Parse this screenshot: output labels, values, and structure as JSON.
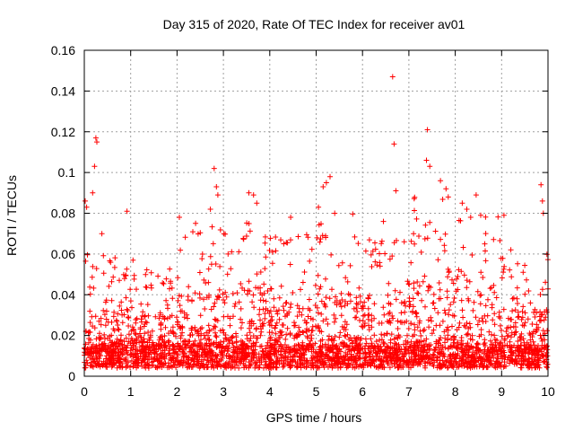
{
  "chart_data": {
    "type": "scatter",
    "title": "Day 315 of 2020, Rate Of TEC Index for receiver av01",
    "xlabel": "GPS time / hours",
    "ylabel": "ROTI / TECUs",
    "xlim": [
      0,
      10
    ],
    "ylim": [
      0,
      0.16
    ],
    "x_ticks": [
      0,
      1,
      2,
      3,
      4,
      5,
      6,
      7,
      8,
      9,
      10
    ],
    "y_ticks": [
      0,
      0.02,
      0.04,
      0.06,
      0.08,
      0.1,
      0.12,
      0.14,
      0.16
    ],
    "x_tick_labels": [
      "0",
      "1",
      "2",
      "3",
      "4",
      "5",
      "6",
      "7",
      "8",
      "9",
      "10"
    ],
    "y_tick_labels": [
      "0",
      "0.02",
      "0.04",
      "0.06",
      "0.08",
      "0.1",
      "0.12",
      "0.14",
      "0.16"
    ],
    "grid": true,
    "marker": "+",
    "color": "#ff0000",
    "sampling": "dense_scatter_estimated",
    "series": [
      {
        "name": "ROTI",
        "notable_points": [
          {
            "x": 0.02,
            "y": 0.086
          },
          {
            "x": 0.05,
            "y": 0.083
          },
          {
            "x": 0.18,
            "y": 0.09
          },
          {
            "x": 0.22,
            "y": 0.103
          },
          {
            "x": 0.25,
            "y": 0.117
          },
          {
            "x": 0.27,
            "y": 0.115
          },
          {
            "x": 0.38,
            "y": 0.07
          },
          {
            "x": 0.92,
            "y": 0.081
          },
          {
            "x": 1.05,
            "y": 0.057
          },
          {
            "x": 2.05,
            "y": 0.078
          },
          {
            "x": 2.4,
            "y": 0.075
          },
          {
            "x": 2.72,
            "y": 0.082
          },
          {
            "x": 2.8,
            "y": 0.102
          },
          {
            "x": 2.85,
            "y": 0.093
          },
          {
            "x": 2.88,
            "y": 0.089
          },
          {
            "x": 3.1,
            "y": 0.06
          },
          {
            "x": 3.55,
            "y": 0.09
          },
          {
            "x": 3.65,
            "y": 0.089
          },
          {
            "x": 3.72,
            "y": 0.085
          },
          {
            "x": 4.45,
            "y": 0.078
          },
          {
            "x": 5.05,
            "y": 0.083
          },
          {
            "x": 5.15,
            "y": 0.093
          },
          {
            "x": 5.22,
            "y": 0.095
          },
          {
            "x": 5.3,
            "y": 0.098
          },
          {
            "x": 5.4,
            "y": 0.08
          },
          {
            "x": 6.45,
            "y": 0.076
          },
          {
            "x": 6.65,
            "y": 0.147
          },
          {
            "x": 6.68,
            "y": 0.114
          },
          {
            "x": 6.72,
            "y": 0.091
          },
          {
            "x": 6.9,
            "y": 0.066
          },
          {
            "x": 7.1,
            "y": 0.07
          },
          {
            "x": 7.38,
            "y": 0.106
          },
          {
            "x": 7.4,
            "y": 0.121
          },
          {
            "x": 7.45,
            "y": 0.103
          },
          {
            "x": 7.68,
            "y": 0.096
          },
          {
            "x": 7.8,
            "y": 0.092
          },
          {
            "x": 7.85,
            "y": 0.088
          },
          {
            "x": 8.15,
            "y": 0.085
          },
          {
            "x": 8.25,
            "y": 0.082
          },
          {
            "x": 8.45,
            "y": 0.089
          },
          {
            "x": 8.55,
            "y": 0.079
          },
          {
            "x": 9.05,
            "y": 0.079
          },
          {
            "x": 9.2,
            "y": 0.062
          },
          {
            "x": 9.85,
            "y": 0.094
          },
          {
            "x": 9.88,
            "y": 0.086
          },
          {
            "x": 9.9,
            "y": 0.08
          }
        ],
        "envelope_hourly": [
          {
            "x_range": [
              0,
              1
            ],
            "base": [
              0.004,
              0.015
            ],
            "upper_typical": 0.06
          },
          {
            "x_range": [
              1,
              2
            ],
            "base": [
              0.004,
              0.015
            ],
            "upper_typical": 0.055
          },
          {
            "x_range": [
              2,
              3
            ],
            "base": [
              0.004,
              0.015
            ],
            "upper_typical": 0.075
          },
          {
            "x_range": [
              3,
              4
            ],
            "base": [
              0.004,
              0.015
            ],
            "upper_typical": 0.08
          },
          {
            "x_range": [
              4,
              5
            ],
            "base": [
              0.004,
              0.015
            ],
            "upper_typical": 0.07
          },
          {
            "x_range": [
              5,
              6
            ],
            "base": [
              0.004,
              0.015
            ],
            "upper_typical": 0.08
          },
          {
            "x_range": [
              6,
              7
            ],
            "base": [
              0.004,
              0.015
            ],
            "upper_typical": 0.07
          },
          {
            "x_range": [
              7,
              8
            ],
            "base": [
              0.004,
              0.015
            ],
            "upper_typical": 0.09
          },
          {
            "x_range": [
              8,
              9
            ],
            "base": [
              0.004,
              0.015
            ],
            "upper_typical": 0.08
          },
          {
            "x_range": [
              9,
              10
            ],
            "base": [
              0.004,
              0.015
            ],
            "upper_typical": 0.06
          }
        ]
      }
    ]
  }
}
